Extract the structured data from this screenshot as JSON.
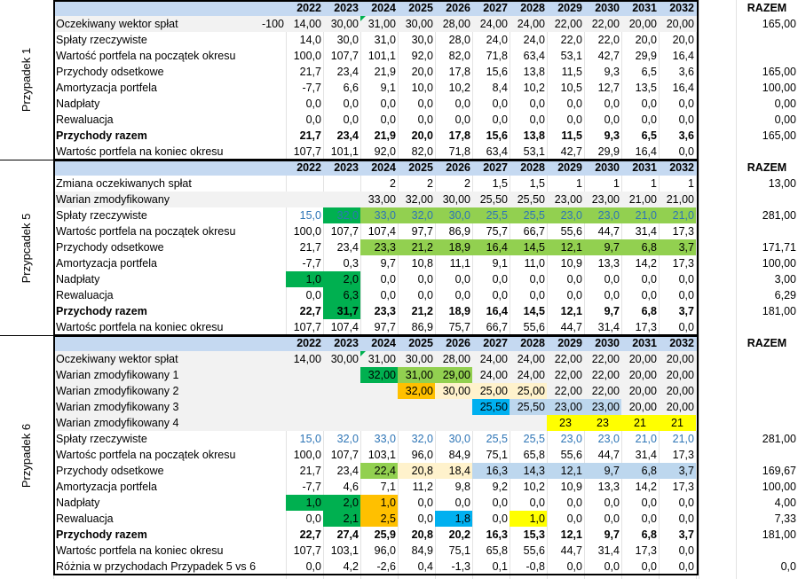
{
  "years": [
    "2022",
    "2023",
    "2024",
    "2025",
    "2026",
    "2027",
    "2028",
    "2029",
    "2030",
    "2031",
    "2032"
  ],
  "razem_label": "RAZEM",
  "colors": {
    "header": "#c5d9f1",
    "green": "#92d050",
    "dark_green": "#00b050",
    "orange": "#ffc000",
    "cream": "#fff2cc",
    "blue": "#00b0f0",
    "light_blue": "#bdd7ee",
    "yellow": "#ffff00",
    "gray": "#f2f2f2",
    "blue_text": "#2e75b6"
  },
  "sections": [
    {
      "title": "Przypadek 1",
      "rows": [
        {
          "label": "Oczekiwany wektor spłat",
          "pre": "-100",
          "values": [
            "14,00",
            "30,00",
            "31,00",
            "30,00",
            "28,00",
            "24,00",
            "24,00",
            "22,00",
            "22,00",
            "20,00",
            "20,00"
          ],
          "razem": "165,00",
          "bg": "gray",
          "flag_col": 2
        },
        {
          "label": "Spłaty rzeczywiste",
          "values": [
            "14,0",
            "30,0",
            "31,0",
            "30,0",
            "28,0",
            "24,0",
            "24,0",
            "22,0",
            "22,0",
            "20,0",
            "20,0"
          ],
          "razem": ""
        },
        {
          "label": "Wartość portfela na początek okresu",
          "values": [
            "100,0",
            "107,7",
            "101,1",
            "92,0",
            "82,0",
            "71,8",
            "63,4",
            "53,1",
            "42,7",
            "29,9",
            "16,4"
          ],
          "razem": ""
        },
        {
          "label": "Przychody odsetkowe",
          "values": [
            "21,7",
            "23,4",
            "21,9",
            "20,0",
            "17,8",
            "15,6",
            "13,8",
            "11,5",
            "9,3",
            "6,5",
            "3,6"
          ],
          "razem": "165,00"
        },
        {
          "label": "Amortyzacja portfela",
          "values": [
            "-7,7",
            "6,6",
            "9,1",
            "10,0",
            "10,2",
            "8,4",
            "10,2",
            "10,5",
            "12,7",
            "13,5",
            "16,4"
          ],
          "razem": "100,00"
        },
        {
          "label": "Nadpłaty",
          "values": [
            "0,0",
            "0,0",
            "0,0",
            "0,0",
            "0,0",
            "0,0",
            "0,0",
            "0,0",
            "0,0",
            "0,0",
            "0,0"
          ],
          "razem": "0,00"
        },
        {
          "label": "Rewaluacja",
          "values": [
            "0,0",
            "0,0",
            "0,0",
            "0,0",
            "0,0",
            "0,0",
            "0,0",
            "0,0",
            "0,0",
            "0,0",
            "0,0"
          ],
          "razem": "0,00"
        },
        {
          "label": "Przychody razem",
          "bold": true,
          "values": [
            "21,7",
            "23,4",
            "21,9",
            "20,0",
            "17,8",
            "15,6",
            "13,8",
            "11,5",
            "9,3",
            "6,5",
            "3,6"
          ],
          "razem": "165,00"
        },
        {
          "label": "Wartośc portfela na koniec okresu",
          "values": [
            "107,7",
            "101,1",
            "92,0",
            "82,0",
            "71,8",
            "63,4",
            "53,1",
            "42,7",
            "29,9",
            "16,4",
            "0,0"
          ],
          "razem": ""
        }
      ]
    },
    {
      "title": "Przypcadek 5",
      "rows": [
        {
          "label": "Zmiana oczekiwanych spłat",
          "values": [
            "",
            "",
            "2",
            "2",
            "2",
            "1,5",
            "1,5",
            "1",
            "1",
            "1",
            "1"
          ],
          "razem": "13,00"
        },
        {
          "label": "Warian zmodyfikowany",
          "values": [
            "",
            "",
            "33,00",
            "32,00",
            "30,00",
            "25,50",
            "25,50",
            "23,00",
            "23,00",
            "21,00",
            "21,00"
          ],
          "razem": "",
          "bg": "gray"
        },
        {
          "label": "Spłaty rzeczywiste",
          "values": [
            "15,0",
            "32,0",
            "33,0",
            "32,0",
            "30,0",
            "25,5",
            "25,5",
            "23,0",
            "23,0",
            "21,0",
            "21,0"
          ],
          "razem": "281,00",
          "blue": true,
          "cells": {
            "1": "dark_green",
            "2": "green",
            "3": "green",
            "4": "green",
            "5": "green",
            "6": "green",
            "7": "green",
            "8": "green",
            "9": "green",
            "10": "green"
          }
        },
        {
          "label": "Wartośc portfela na początek okresu",
          "values": [
            "100,0",
            "107,7",
            "107,4",
            "97,7",
            "86,9",
            "75,7",
            "66,7",
            "55,6",
            "44,7",
            "31,4",
            "17,3"
          ],
          "razem": ""
        },
        {
          "label": "Przychody odsetkowe",
          "values": [
            "21,7",
            "23,4",
            "23,3",
            "21,2",
            "18,9",
            "16,4",
            "14,5",
            "12,1",
            "9,7",
            "6,8",
            "3,7"
          ],
          "razem": "171,71",
          "cells": {
            "2": "green",
            "3": "green",
            "4": "green",
            "5": "green",
            "6": "green",
            "7": "green",
            "8": "green",
            "9": "green",
            "10": "green"
          }
        },
        {
          "label": "Amortyzacja portfela",
          "values": [
            "-7,7",
            "0,3",
            "9,7",
            "10,8",
            "11,1",
            "9,1",
            "11,0",
            "10,9",
            "13,3",
            "14,2",
            "17,3"
          ],
          "razem": "100,00"
        },
        {
          "label": "Nadpłaty",
          "values": [
            "1,0",
            "2,0",
            "0,0",
            "0,0",
            "0,0",
            "0,0",
            "0,0",
            "0,0",
            "0,0",
            "0,0",
            "0,0"
          ],
          "razem": "3,00",
          "cells": {
            "0": "dark_green",
            "1": "dark_green"
          }
        },
        {
          "label": "Rewaluacja",
          "values": [
            "0,0",
            "6,3",
            "0,0",
            "0,0",
            "0,0",
            "0,0",
            "0,0",
            "0,0",
            "0,0",
            "0,0",
            "0,0"
          ],
          "razem": "6,29",
          "cells": {
            "1": "dark_green"
          }
        },
        {
          "label": "Przychody razem",
          "bold": true,
          "values": [
            "22,7",
            "31,7",
            "23,3",
            "21,2",
            "18,9",
            "16,4",
            "14,5",
            "12,1",
            "9,7",
            "6,8",
            "3,7"
          ],
          "razem": "181,00",
          "cells": {
            "1": "dark_green"
          }
        },
        {
          "label": "Wartośc portfela na koniec okresu",
          "values": [
            "107,7",
            "107,4",
            "97,7",
            "86,9",
            "75,7",
            "66,7",
            "55,6",
            "44,7",
            "31,4",
            "17,3",
            "0,0"
          ],
          "razem": ""
        }
      ]
    },
    {
      "title": "Przypadek 6",
      "rows": [
        {
          "label": "Oczekiwany wektor spłat",
          "values": [
            "14,00",
            "30,00",
            "31,00",
            "30,00",
            "28,00",
            "24,00",
            "24,00",
            "22,00",
            "22,00",
            "20,00",
            "20,00"
          ],
          "razem": "",
          "bg": "gray",
          "flag_col": 2
        },
        {
          "label": "Warian zmodyfikowany 1",
          "values": [
            "",
            "",
            "32,00",
            "31,00",
            "29,00",
            "24,00",
            "24,00",
            "22,00",
            "22,00",
            "20,00",
            "20,00"
          ],
          "razem": "",
          "bg": "gray",
          "cells": {
            "2": "dark_green",
            "3": "green",
            "4": "green"
          }
        },
        {
          "label": "Warian zmodyfikowany 2",
          "values": [
            "",
            "",
            "",
            "32,00",
            "30,00",
            "25,00",
            "25,00",
            "22,00",
            "22,00",
            "20,00",
            "20,00"
          ],
          "razem": "",
          "bg": "gray",
          "cells": {
            "3": "orange",
            "4": "cream",
            "5": "cream",
            "6": "cream"
          }
        },
        {
          "label": "Warian zmodyfikowany 3",
          "values": [
            "",
            "",
            "",
            "",
            "",
            "25,50",
            "25,50",
            "23,00",
            "23,00",
            "20,00",
            "20,00"
          ],
          "razem": "",
          "bg": "gray",
          "cells": {
            "5": "blue",
            "6": "light_blue",
            "7": "light_blue",
            "8": "light_blue"
          }
        },
        {
          "label": "Warian zmodyfikowany 4",
          "values": [
            "",
            "",
            "",
            "",
            "",
            "",
            "",
            "23",
            "23",
            "21",
            "21"
          ],
          "razem": "",
          "bg": "gray",
          "center_cols": [
            7,
            8,
            9,
            10
          ],
          "cells": {
            "7": "yellow",
            "8": "yellow",
            "9": "yellow",
            "10": "yellow"
          }
        },
        {
          "label": "Spłaty rzeczywiste",
          "values": [
            "15,0",
            "32,0",
            "33,0",
            "32,0",
            "30,0",
            "25,5",
            "25,5",
            "23,0",
            "23,0",
            "21,0",
            "21,0"
          ],
          "razem": "281,00",
          "blue": true
        },
        {
          "label": "Wartośc portfela na początek okresu",
          "values": [
            "100,0",
            "107,7",
            "103,1",
            "96,0",
            "84,9",
            "75,1",
            "65,8",
            "55,6",
            "44,7",
            "31,4",
            "17,3"
          ],
          "razem": ""
        },
        {
          "label": "Przychody odsetkowe",
          "values": [
            "21,7",
            "23,4",
            "22,4",
            "20,8",
            "18,4",
            "16,3",
            "14,3",
            "12,1",
            "9,7",
            "6,8",
            "3,7"
          ],
          "razem": "169,67",
          "cells": {
            "2": "green",
            "3": "cream",
            "4": "cream",
            "5": "light_blue",
            "6": "light_blue",
            "7": "light_blue",
            "8": "light_blue",
            "9": "light_blue",
            "10": "light_blue"
          }
        },
        {
          "label": "Amortyzacja portfela",
          "values": [
            "-7,7",
            "4,6",
            "7,1",
            "11,2",
            "9,8",
            "9,2",
            "10,2",
            "10,9",
            "13,3",
            "14,2",
            "17,3"
          ],
          "razem": "100,00"
        },
        {
          "label": "Nadpłaty",
          "values": [
            "1,0",
            "2,0",
            "1,0",
            "0,0",
            "0,0",
            "0,0",
            "0,0",
            "0,0",
            "0,0",
            "0,0",
            "0,0"
          ],
          "razem": "4,00",
          "cells": {
            "0": "dark_green",
            "1": "dark_green",
            "2": "orange"
          }
        },
        {
          "label": "Rewaluacja",
          "values": [
            "0,0",
            "2,1",
            "2,5",
            "0,0",
            "1,8",
            "0,0",
            "1,0",
            "0,0",
            "0,0",
            "0,0",
            "0,0"
          ],
          "razem": "7,33",
          "cells": {
            "1": "dark_green",
            "2": "orange",
            "4": "blue",
            "6": "yellow"
          }
        },
        {
          "label": "Przychody razem",
          "bold": true,
          "values": [
            "22,7",
            "27,4",
            "25,9",
            "20,8",
            "20,2",
            "16,3",
            "15,3",
            "12,1",
            "9,7",
            "6,8",
            "3,7"
          ],
          "razem": "181,00"
        },
        {
          "label": "Wartośc portfela na koniec okresu",
          "values": [
            "107,7",
            "103,1",
            "96,0",
            "84,9",
            "75,1",
            "65,8",
            "55,6",
            "44,7",
            "31,4",
            "17,3",
            "0,0"
          ],
          "razem": ""
        },
        {
          "label": "Różnia w przychodach Przypadek 5 vs 6",
          "values": [
            "0,0",
            "4,2",
            "-2,6",
            "0,4",
            "-1,3",
            "0,1",
            "-0,8",
            "0,0",
            "0,0",
            "0,0",
            "0,0"
          ],
          "razem": "0,0"
        }
      ]
    }
  ]
}
